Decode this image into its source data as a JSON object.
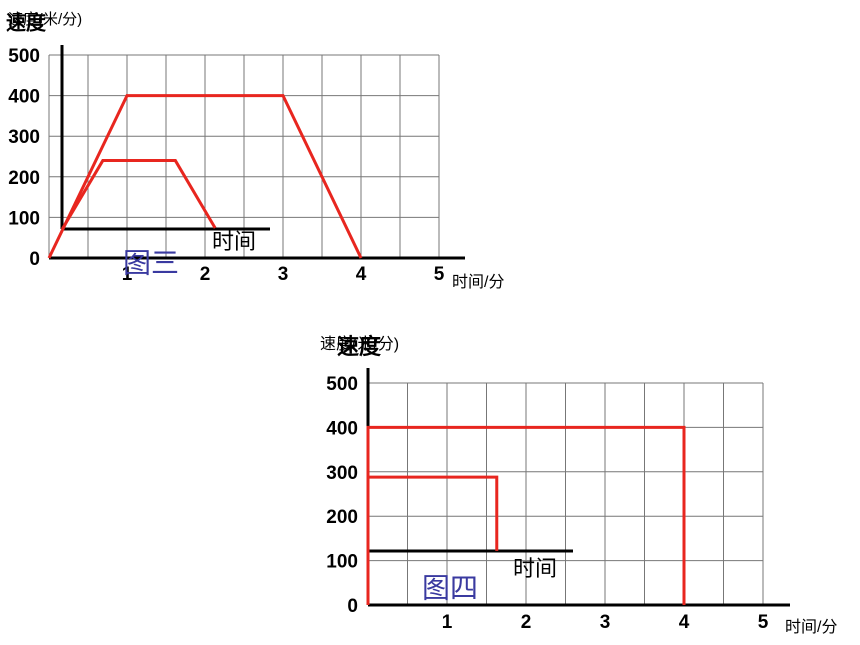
{
  "chart_data": [
    {
      "type": "line",
      "y_label": "速度(米/分)",
      "y_label_overlay": "速度",
      "x_label": "时间/分",
      "annotations": [
        "图三",
        "时间"
      ],
      "xlim": [
        0,
        5
      ],
      "ylim": [
        0,
        500
      ],
      "xticks": [
        1,
        2,
        3,
        4,
        5
      ],
      "yticks": [
        0,
        100,
        200,
        300,
        400,
        500
      ],
      "x_grid": [
        0,
        0.5,
        1,
        1.5,
        2,
        2.5,
        3,
        3.5,
        4,
        4.5,
        5
      ],
      "grid": true,
      "series": [
        {
          "color": "#e8261f",
          "x": [
            0,
            1,
            3,
            4
          ],
          "values": [
            0,
            400,
            400,
            0
          ]
        },
        {
          "color": "#e8261f",
          "x": [
            0.17,
            0.69,
            1.62,
            2.13
          ],
          "values": [
            71,
            240,
            240,
            74
          ]
        }
      ]
    },
    {
      "type": "line",
      "y_label": "速度(米/分)",
      "y_label_overlay": "速度",
      "x_label": "时间/分",
      "annotations": [
        "图四",
        "时间"
      ],
      "xlim": [
        0,
        5
      ],
      "ylim": [
        0,
        500
      ],
      "xticks": [
        1,
        2,
        3,
        4,
        5
      ],
      "yticks": [
        0,
        100,
        200,
        300,
        400,
        500
      ],
      "x_grid": [
        0,
        0.5,
        1,
        1.5,
        2,
        2.5,
        3,
        3.5,
        4,
        4.5,
        5
      ],
      "grid": true,
      "series": [
        {
          "color": "#e8261f",
          "x": [
            0,
            0,
            4,
            4
          ],
          "values": [
            0,
            400,
            400,
            0
          ]
        },
        {
          "color": "#e8261f",
          "x": [
            0,
            0,
            1.63,
            1.63
          ],
          "values": [
            122,
            288,
            288,
            122
          ]
        }
      ]
    }
  ]
}
